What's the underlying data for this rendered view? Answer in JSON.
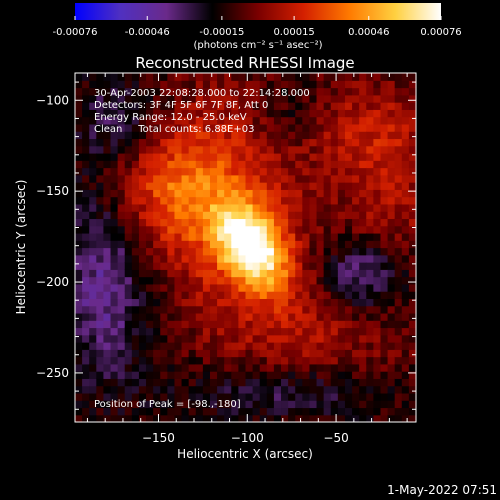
{
  "colorbar": {
    "tick_labels": [
      "-0.00076",
      "-0.00046",
      "-0.00015",
      "0.00015",
      "0.00046",
      "0.00076"
    ],
    "tick_values": [
      -0.00076,
      -0.00046,
      -0.00015,
      0.00015,
      0.00046,
      0.00076
    ],
    "units": "(photons cm⁻² s⁻¹ asec⁻²)",
    "stops": [
      "#0000ff",
      "#5030c0",
      "#6a2a8a",
      "#000000",
      "#7a0000",
      "#d42000",
      "#ff7a00",
      "#ffd040",
      "#ffffff"
    ]
  },
  "plot": {
    "title": "Reconstructed RHESSI Image",
    "info_lines": [
      "30-Apr-2003 22:08:28.000 to 22:14:28.000",
      "Detectors: 3F 4F 5F 6F 7F 8F, Att 0",
      "Energy Range: 12.0 - 25.0 keV",
      "Clean     Total counts: 6.88E+03"
    ],
    "peak_text": "Position of Peak = [-98.,-180]"
  },
  "footer": {
    "timestamp": "1-May-2022 07:51"
  },
  "chart_data": {
    "type": "heatmap",
    "title": "Reconstructed RHESSI Image",
    "xlabel": "Heliocentric X (arcsec)",
    "ylabel": "Heliocentric Y (arcsec)",
    "xlim": [
      -197,
      -5
    ],
    "ylim": [
      -277,
      -85
    ],
    "x_ticks": [
      -150,
      -100,
      -50
    ],
    "x_tick_labels": [
      "−150",
      "−100",
      "−50"
    ],
    "y_ticks": [
      -100,
      -150,
      -200,
      -250
    ],
    "y_tick_labels": [
      "−100",
      "−150",
      "−200",
      "−250"
    ],
    "value_range": [
      -0.00076,
      0.00076
    ],
    "peak": {
      "x": -98,
      "y": -180
    },
    "sources": [
      {
        "x": -98,
        "y": -180,
        "amplitude": 0.00076,
        "sigma_x": 11,
        "sigma_y": 17,
        "tilt_deg": 35
      },
      {
        "x": -112,
        "y": -162,
        "amplitude": 0.00035,
        "sigma_x": 30,
        "sigma_y": 45,
        "tilt_deg": 20
      },
      {
        "x": -148,
        "y": -148,
        "amplitude": 0.00025,
        "sigma_x": 22,
        "sigma_y": 22,
        "tilt_deg": 0
      },
      {
        "x": -40,
        "y": -115,
        "amplitude": 0.0002,
        "sigma_x": 35,
        "sigma_y": 18,
        "tilt_deg": 0
      },
      {
        "x": -20,
        "y": -160,
        "amplitude": 0.00018,
        "sigma_x": 20,
        "sigma_y": 30,
        "tilt_deg": 0
      },
      {
        "x": -60,
        "y": -235,
        "amplitude": 0.00015,
        "sigma_x": 35,
        "sigma_y": 25,
        "tilt_deg": 0
      },
      {
        "x": -35,
        "y": -195,
        "amplitude": -0.00035,
        "sigma_x": 18,
        "sigma_y": 15,
        "tilt_deg": 0
      },
      {
        "x": -75,
        "y": -260,
        "amplitude": -0.00025,
        "sigma_x": 40,
        "sigma_y": 12,
        "tilt_deg": 0
      },
      {
        "x": -180,
        "y": -200,
        "amplitude": -0.0003,
        "sigma_x": 18,
        "sigma_y": 40,
        "tilt_deg": 0
      },
      {
        "x": -170,
        "y": -110,
        "amplitude": -0.00022,
        "sigma_x": 20,
        "sigma_y": 18,
        "tilt_deg": 0
      },
      {
        "x": -75,
        "y": -110,
        "amplitude": -0.00018,
        "sigma_x": 15,
        "sigma_y": 15,
        "tilt_deg": 0
      }
    ]
  }
}
